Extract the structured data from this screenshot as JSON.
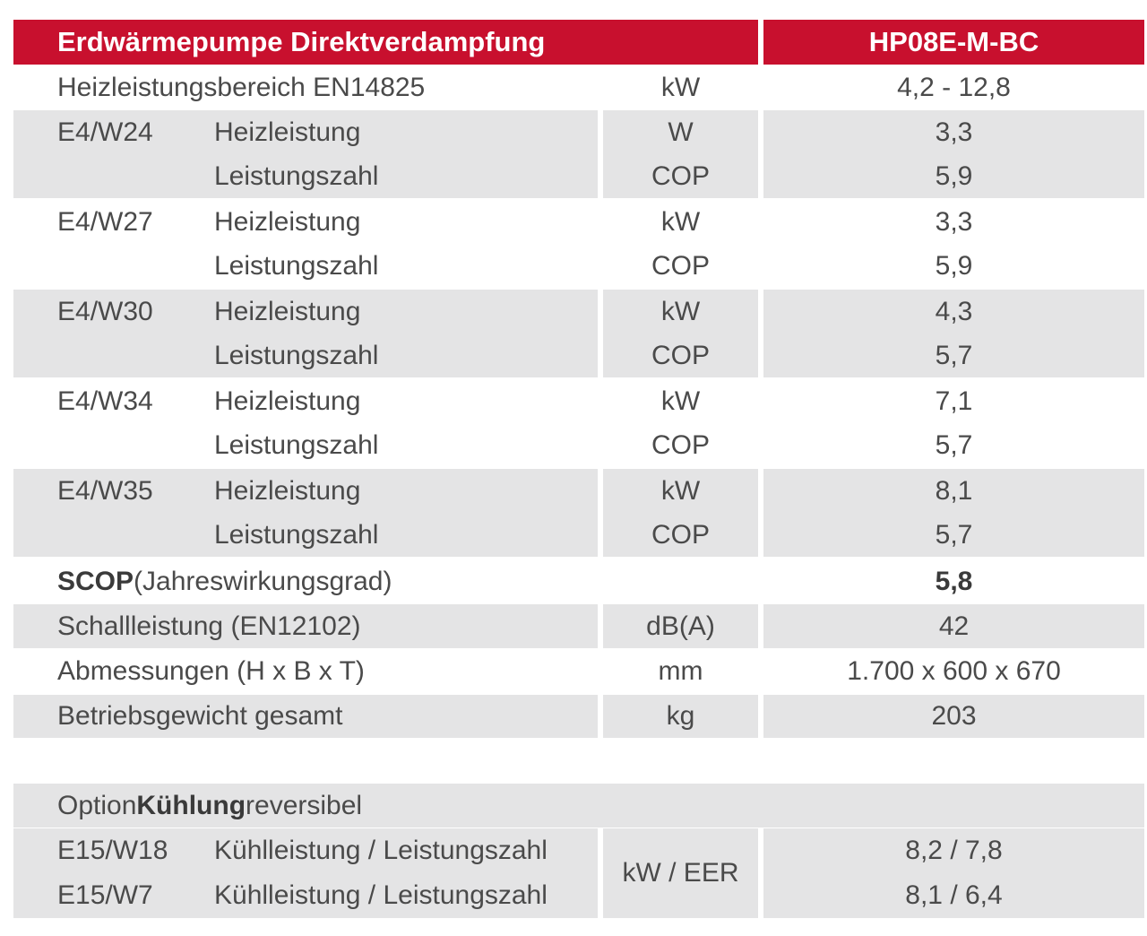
{
  "header": {
    "title": "Erdwärmepumpe Direktverdampfung",
    "model": "HP08E-M-BC"
  },
  "range": {
    "label": "Heizleistungsbereich EN14825",
    "unit": "kW",
    "value": "4,2 - 12,8"
  },
  "points": [
    {
      "cond": "E4/W24",
      "heat_label": "Heizleistung",
      "heat_unit": "W",
      "heat_value": "3,3",
      "cop_label": "Leistungszahl",
      "cop_unit": "COP",
      "cop_value": "5,9"
    },
    {
      "cond": "E4/W27",
      "heat_label": "Heizleistung",
      "heat_unit": "kW",
      "heat_value": "3,3",
      "cop_label": "Leistungszahl",
      "cop_unit": "COP",
      "cop_value": "5,9"
    },
    {
      "cond": "E4/W30",
      "heat_label": "Heizleistung",
      "heat_unit": "kW",
      "heat_value": "4,3",
      "cop_label": "Leistungszahl",
      "cop_unit": "COP",
      "cop_value": "5,7"
    },
    {
      "cond": "E4/W34",
      "heat_label": "Heizleistung",
      "heat_unit": "kW",
      "heat_value": "7,1",
      "cop_label": "Leistungszahl",
      "cop_unit": "COP",
      "cop_value": "5,7"
    },
    {
      "cond": "E4/W35",
      "heat_label": "Heizleistung",
      "heat_unit": "kW",
      "heat_value": "8,1",
      "cop_label": "Leistungszahl",
      "cop_unit": "COP",
      "cop_value": "5,7"
    }
  ],
  "scop": {
    "label_bold": "SCOP",
    "label_rest": " (Jahreswirkungsgrad)",
    "value": "5,8"
  },
  "sound": {
    "label": "Schallleistung (EN12102)",
    "unit": "dB(A)",
    "value": "42"
  },
  "dims": {
    "label": "Abmessungen (H x B x T)",
    "unit": "mm",
    "value": "1.700 x 600 x 670"
  },
  "weight": {
    "label": "Betriebsgewicht gesamt",
    "unit": "kg",
    "value": "203"
  },
  "cooling": {
    "title_pre": "Option ",
    "title_bold": "Kühlung",
    "title_post": " reversibel",
    "unit": "kW / EER",
    "rows": [
      {
        "cond": "E15/W18",
        "label": "Kühlleistung / Leistungszahl",
        "value": "8,2 / 7,8"
      },
      {
        "cond": "E15/W7",
        "label": "Kühlleistung / Leistungszahl",
        "value": "8,1 / 6,4"
      }
    ]
  },
  "colors": {
    "header_bg": "#c8102e",
    "header_text": "#ffffff",
    "stripe": "#e4e4e5",
    "text": "#4a4a4a"
  }
}
